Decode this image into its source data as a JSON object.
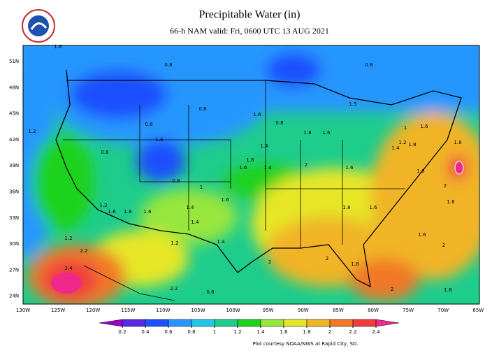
{
  "header": {
    "title": "Precipitable Water (in)",
    "subtitle": "66-h NAM valid: Fri, 0600 UTC 13 AUG 2021"
  },
  "map": {
    "lat_labels": [
      "51N",
      "48N",
      "45N",
      "42N",
      "39N",
      "36N",
      "33N",
      "30N",
      "27N",
      "24N"
    ],
    "lon_labels": [
      "130W",
      "125W",
      "120W",
      "115W",
      "110W",
      "105W",
      "100W",
      "95W",
      "90W",
      "85W",
      "80W",
      "75W",
      "70W",
      "65W"
    ],
    "contour_labels": [
      "1.6",
      "0.8",
      "0.8",
      "0.8",
      "0.8",
      "1.6",
      "0.8",
      "1.2",
      "0.8",
      "0.8",
      "1.6",
      "1.6",
      "1.4",
      "1.6",
      "1.4",
      "2",
      "1.8",
      "1.6",
      "1.2",
      "1.4",
      "1.8",
      "1.6",
      "1.2",
      "1.6",
      "1.4",
      "1.2",
      "1.4",
      "1.4",
      "1.2",
      "2.2",
      "2.4",
      "1.8",
      "1.6",
      "1.6",
      "1.8",
      "1.6",
      "2",
      "1.8",
      "2",
      "2",
      "1.8",
      "1.6",
      "2",
      "1.6",
      "2",
      "1.8",
      "0.8",
      "2.2",
      "1",
      "1",
      "1.6",
      "1.5",
      "1.8"
    ]
  },
  "colorbar": {
    "ticks": [
      0.2,
      0.4,
      0.6,
      0.8,
      1,
      1.2,
      1.4,
      1.6,
      1.8,
      2,
      2.2,
      2.4
    ],
    "colors": [
      "#a000c8",
      "#5a28e6",
      "#1e50ff",
      "#2896ff",
      "#1ec8e6",
      "#1ecc8c",
      "#1ed21e",
      "#96e63c",
      "#e6e628",
      "#f0b428",
      "#f07828",
      "#f03c3c",
      "#f0288c"
    ]
  },
  "credit": "Plot courtesy NOAA/NWS at Rapid City, SD."
}
